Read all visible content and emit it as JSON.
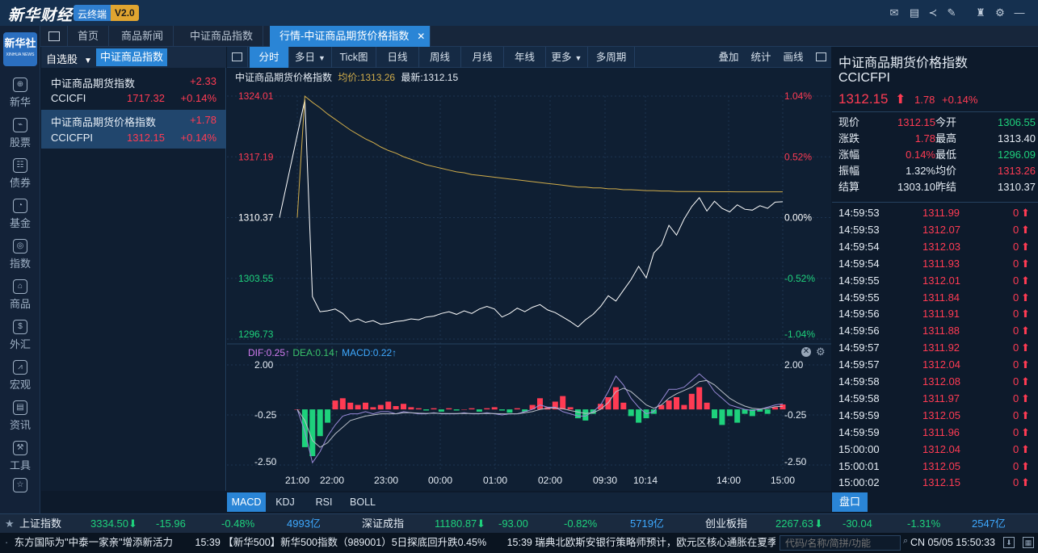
{
  "app": {
    "logo_text": "新华财经",
    "badge_main": "云终端",
    "badge_version": "V2.0"
  },
  "top_icons": [
    "mail-icon",
    "chat-icon",
    "share-icon",
    "edit-icon",
    "shirt-icon",
    "gear-icon",
    "minimize-icon",
    "maximize-icon",
    "close-icon"
  ],
  "tabs": [
    {
      "label": "首页"
    },
    {
      "label": "商品新闻"
    },
    {
      "label": "中证商品指数"
    },
    {
      "label": "行情-中证商品期货价格指数",
      "close": "✕"
    }
  ],
  "sidebar": {
    "logo_cn": "新华社",
    "logo_en": "XINHUA NEWS",
    "items": [
      {
        "label": "新华",
        "icon": "xinhua-icon"
      },
      {
        "label": "股票",
        "icon": "stock-chart-icon"
      },
      {
        "label": "债券",
        "icon": "bond-icon"
      },
      {
        "label": "基金",
        "icon": "fund-icon"
      },
      {
        "label": "指数",
        "icon": "index-icon"
      },
      {
        "label": "商品",
        "icon": "commodity-icon"
      },
      {
        "label": "外汇",
        "icon": "forex-icon"
      },
      {
        "label": "宏观",
        "icon": "macro-icon"
      },
      {
        "label": "资讯",
        "icon": "news-icon"
      },
      {
        "label": "工具",
        "icon": "tools-icon"
      }
    ]
  },
  "watchlist": {
    "dropdown_label": "自选股",
    "tab_label": "中证商品指数",
    "items": [
      {
        "name": "中证商品期货指数",
        "change": "+2.33",
        "code": "CCICFI",
        "price": "1717.32",
        "pct": "+0.14%"
      },
      {
        "name": "中证商品期货价格指数",
        "change": "+1.78",
        "code": "CCICFPI",
        "price": "1312.15",
        "pct": "+0.14%"
      }
    ]
  },
  "chart_toolbar": {
    "buttons": [
      "分时",
      "多日",
      "Tick图",
      "日线",
      "周线",
      "月线",
      "年线",
      "更多",
      "多周期"
    ],
    "right_buttons": [
      "叠加",
      "统计",
      "画线"
    ]
  },
  "chart_header": {
    "name": "中证商品期货价格指数",
    "avg_label": "均价:1313.26",
    "latest_label": "最新:1312.15"
  },
  "macd_header": {
    "dif": "DIF:0.25↑",
    "dea": "DEA:0.14↑",
    "macd": "MACD:0.22↑"
  },
  "chart_data": [
    {
      "type": "line",
      "title": "中证商品期货价格指数",
      "y_ticks_left": [
        "1324.01",
        "1317.19",
        "1310.37",
        "1303.55",
        "1296.73"
      ],
      "y_ticks_right": [
        "1.04%",
        "0.52%",
        "0.00%",
        "-0.52%",
        "-1.04%"
      ],
      "ylim": [
        1296.73,
        1324.01
      ],
      "x_ticks": [
        "21:00",
        "22:00",
        "23:00",
        "00:00",
        "01:00",
        "02:00",
        "09:30",
        "10:14",
        "14:00",
        "15:00"
      ],
      "series": [
        {
          "name": "最新",
          "values": [
            1310.37,
            1323.6,
            1301.5,
            1299.8,
            1299.9,
            1300.1,
            1299.6,
            1298.7,
            1299.0,
            1298.6,
            1298.8,
            1298.4,
            1298.5,
            1298.7,
            1298.8,
            1299.0,
            1298.9,
            1299.2,
            1299.3,
            1299.6,
            1299.8,
            1299.5,
            1299.9,
            1299.6,
            1300.1,
            1300.4,
            1300.1,
            1299.2,
            1299.6,
            1300.2,
            1299.8,
            1300.3,
            1300.6,
            1300.0,
            1299.7,
            1299.2,
            1298.7,
            1298.1,
            1298.9,
            1299.5,
            1300.4,
            1301.6,
            1301.0,
            1302.2,
            1303.4,
            1304.9,
            1303.6,
            1306.4,
            1307.3,
            1309.5,
            1308.4,
            1310.2,
            1311.6,
            1312.6,
            1311.1,
            1312.2,
            1311.4,
            1311.0,
            1311.8,
            1311.3,
            1311.2,
            1311.7,
            1311.4,
            1312.1,
            1312.15
          ]
        },
        {
          "name": "均价",
          "values": [
            1310.37,
            1324.0,
            1323.3,
            1322.7,
            1322.0,
            1321.4,
            1320.8,
            1320.2,
            1319.7,
            1319.2,
            1318.8,
            1318.3,
            1317.9,
            1317.6,
            1317.2,
            1316.9,
            1316.6,
            1316.3,
            1316.1,
            1315.9,
            1315.7,
            1315.5,
            1315.4,
            1315.2,
            1315.1,
            1315.0,
            1314.9,
            1314.8,
            1314.7,
            1314.6,
            1314.5,
            1314.4,
            1314.3,
            1314.2,
            1314.1,
            1314.0,
            1313.9,
            1313.8,
            1313.8,
            1313.7,
            1313.7,
            1313.6,
            1313.6,
            1313.5,
            1313.5,
            1313.45,
            1313.4,
            1313.4,
            1313.35,
            1313.35,
            1313.3,
            1313.3,
            1313.3,
            1313.28,
            1313.28,
            1313.27,
            1313.27,
            1313.27,
            1313.26,
            1313.26,
            1313.26,
            1313.26,
            1313.26,
            1313.26,
            1313.26
          ]
        }
      ]
    },
    {
      "type": "bar",
      "title": "MACD",
      "y_ticks": [
        "2.00",
        "-0.25",
        "-2.50"
      ],
      "ylim": [
        -2.5,
        2.0
      ],
      "series": [
        {
          "name": "MACD",
          "values": [
            0,
            -1.7,
            -2.1,
            -1.2,
            -0.6,
            0.4,
            0.5,
            0.3,
            0.2,
            0.3,
            0.1,
            0.2,
            0.35,
            0.15,
            0.25,
            0.1,
            0.05,
            -0.05,
            0.05,
            -0.1,
            0.05,
            -0.05,
            0.0,
            0.05,
            -0.1,
            0.05,
            0.1,
            -0.05,
            -0.15,
            0.05,
            -0.1,
            0.2,
            0.5,
            0.1,
            0.35,
            0.6,
            0.1,
            -0.4,
            -0.5,
            -0.2,
            0.25,
            0.55,
            1.0,
            0.3,
            -0.3,
            -0.6,
            -0.4,
            -0.2,
            0.2,
            0.4,
            0.55,
            0.2,
            0.7,
            1.0,
            0.3,
            -0.4,
            -0.7,
            -0.3,
            -0.6,
            -0.2,
            -0.3,
            -0.1,
            -0.2,
            0.1,
            0.22
          ]
        },
        {
          "name": "DIF",
          "values": [
            0,
            -1.0,
            -2.4,
            -1.9,
            -1.2,
            -0.7,
            -0.3,
            -0.2,
            -0.2,
            -0.1,
            -0.2,
            -0.1,
            -0.1,
            -0.2,
            -0.1,
            -0.15,
            -0.2,
            -0.2,
            -0.15,
            -0.2,
            -0.2,
            -0.2,
            -0.15,
            -0.2,
            -0.2,
            -0.15,
            -0.2,
            -0.25,
            -0.2,
            -0.2,
            -0.1,
            0.0,
            0.2,
            0.1,
            0.1,
            -0.1,
            -0.2,
            -0.3,
            -0.3,
            -0.1,
            0.2,
            0.8,
            1.5,
            1.1,
            0.5,
            0.1,
            -0.2,
            -0.1,
            0.4,
            0.9,
            0.9,
            1.0,
            1.3,
            1.6,
            1.3,
            0.8,
            0.5,
            0.2,
            0.1,
            0.0,
            -0.05,
            0.0,
            0.1,
            0.2,
            0.25
          ]
        },
        {
          "name": "DEA",
          "values": [
            0,
            -0.5,
            -1.4,
            -1.7,
            -1.5,
            -1.1,
            -0.8,
            -0.5,
            -0.4,
            -0.3,
            -0.25,
            -0.2,
            -0.2,
            -0.2,
            -0.15,
            -0.15,
            -0.17,
            -0.18,
            -0.17,
            -0.18,
            -0.19,
            -0.19,
            -0.18,
            -0.19,
            -0.19,
            -0.18,
            -0.19,
            -0.2,
            -0.2,
            -0.2,
            -0.15,
            -0.1,
            0.0,
            0.05,
            0.07,
            0.03,
            -0.05,
            -0.12,
            -0.18,
            -0.15,
            0.0,
            0.3,
            0.8,
            0.95,
            0.8,
            0.5,
            0.2,
            0.05,
            0.2,
            0.5,
            0.7,
            0.85,
            1.0,
            1.25,
            1.3,
            1.1,
            0.8,
            0.5,
            0.3,
            0.15,
            0.05,
            0.02,
            0.05,
            0.12,
            0.14
          ]
        }
      ]
    }
  ],
  "quote": {
    "title": "中证商品期货价格指数",
    "code": "CCICFPI",
    "price": "1312.15",
    "arrow": "⬆",
    "change": "1.78",
    "pct": "+0.14%",
    "rows": [
      [
        "现价",
        "1312.15",
        "今开",
        "1306.55"
      ],
      [
        "涨跌",
        "1.78",
        "最高",
        "1313.40"
      ],
      [
        "涨幅",
        "0.14%",
        "最低",
        "1296.09"
      ],
      [
        "振幅",
        "1.32%",
        "均价",
        "1313.26"
      ],
      [
        "结算",
        "1303.10",
        "昨结",
        "1310.37"
      ]
    ]
  },
  "ticks": [
    [
      "14:59:53",
      "1311.99",
      "0"
    ],
    [
      "14:59:53",
      "1312.07",
      "0"
    ],
    [
      "14:59:54",
      "1312.03",
      "0"
    ],
    [
      "14:59:54",
      "1311.93",
      "0"
    ],
    [
      "14:59:55",
      "1312.01",
      "0"
    ],
    [
      "14:59:55",
      "1311.84",
      "0"
    ],
    [
      "14:59:56",
      "1311.91",
      "0"
    ],
    [
      "14:59:56",
      "1311.88",
      "0"
    ],
    [
      "14:59:57",
      "1311.92",
      "0"
    ],
    [
      "14:59:57",
      "1312.04",
      "0"
    ],
    [
      "14:59:58",
      "1312.08",
      "0"
    ],
    [
      "14:59:58",
      "1311.97",
      "0"
    ],
    [
      "14:59:59",
      "1312.05",
      "0"
    ],
    [
      "14:59:59",
      "1311.96",
      "0"
    ],
    [
      "15:00:00",
      "1312.04",
      "0"
    ],
    [
      "15:00:01",
      "1312.05",
      "0"
    ],
    [
      "15:00:02",
      "1312.15",
      "0"
    ]
  ],
  "indicator_tabs": [
    "MACD",
    "KDJ",
    "RSI",
    "BOLL"
  ],
  "pankou_label": "盘口",
  "index_bar": [
    {
      "name": "上证指数",
      "value": "3334.50",
      "change": "-15.96",
      "pct": "-0.48%",
      "amount": "4993亿"
    },
    {
      "name": "深证成指",
      "value": "11180.87",
      "change": "-93.00",
      "pct": "-0.82%",
      "amount": "5719亿"
    },
    {
      "name": "创业板指",
      "value": "2267.63",
      "change": "-30.04",
      "pct": "-1.31%",
      "amount": "2547亿"
    }
  ],
  "news_bar": {
    "items": [
      "东方国际为\"中泰一家亲\"增添新活力",
      "15:39 【新华500】新华500指数（989001）5日探底回升跌0.45%",
      "15:39 瑞典北欧斯安银行策略师预计，欧元区核心通胀在夏季"
    ],
    "search_placeholder": "代码/名称/简拼/功能",
    "clock": "CN 05/05 15:50:33"
  },
  "colors": {
    "up": "#ff3b53",
    "down": "#1ed17c",
    "accent": "#2a85d6",
    "avg_line": "#d1ad4b"
  }
}
